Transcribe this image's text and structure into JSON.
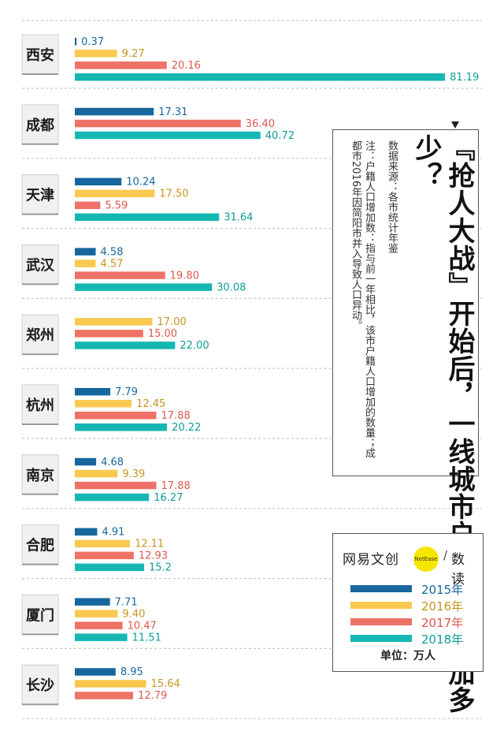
{
  "title": {
    "main": "『抢人大战』开始后，一线城市户籍人口增加多少？",
    "source": "数据来源：各市统计年鉴",
    "note": "注：户籍人口增加数：指与前一年相比，该市户籍人口增加的数量；成都市2016年因简阳市并入导致人口异动。"
  },
  "brand": {
    "name": "网易文创",
    "badge": "NetEase",
    "slash": "/",
    "sub": "数读"
  },
  "legend": {
    "items": [
      {
        "label": "2015年",
        "color": "#17679e"
      },
      {
        "label": "2016年",
        "color": "#f9c94f"
      },
      {
        "label": "2017年",
        "color": "#ee7267"
      },
      {
        "label": "2018年",
        "color": "#15b7b2"
      }
    ],
    "unit": "单位：万人"
  },
  "chart_data": {
    "type": "bar",
    "orientation": "horizontal",
    "series_names": [
      "2015年",
      "2016年",
      "2017年",
      "2018年"
    ],
    "series_colors": [
      "#17679e",
      "#f9c94f",
      "#ee7267",
      "#15b7b2"
    ],
    "label_colors": [
      "#17679e",
      "#c8951e",
      "#e0584d",
      "#0f9c97"
    ],
    "unit": "单位：万人",
    "cities": [
      {
        "name": "西安",
        "bars": [
          {
            "s": 0,
            "v": 0.37,
            "label": "0.37"
          },
          {
            "s": 1,
            "v": 9.27,
            "label": "9.27"
          },
          {
            "s": 2,
            "v": 20.16,
            "label": "20.16"
          },
          {
            "s": 3,
            "v": 81.19,
            "label": "81.19"
          }
        ]
      },
      {
        "name": "成都",
        "bars": [
          {
            "s": 0,
            "v": 17.31,
            "label": "17.31"
          },
          {
            "s": 2,
            "v": 36.4,
            "label": "36.40"
          },
          {
            "s": 3,
            "v": 40.72,
            "label": "40.72"
          }
        ]
      },
      {
        "name": "天津",
        "bars": [
          {
            "s": 0,
            "v": 10.24,
            "label": "10.24"
          },
          {
            "s": 1,
            "v": 17.5,
            "label": "17.50"
          },
          {
            "s": 2,
            "v": 5.59,
            "label": "5.59"
          },
          {
            "s": 3,
            "v": 31.64,
            "label": "31.64"
          }
        ]
      },
      {
        "name": "武汉",
        "bars": [
          {
            "s": 0,
            "v": 4.58,
            "label": "4.58"
          },
          {
            "s": 1,
            "v": 4.57,
            "label": "4.57"
          },
          {
            "s": 2,
            "v": 19.8,
            "label": "19.80"
          },
          {
            "s": 3,
            "v": 30.08,
            "label": "30.08"
          }
        ]
      },
      {
        "name": "郑州",
        "bars": [
          {
            "s": 1,
            "v": 17.0,
            "label": "17.00"
          },
          {
            "s": 2,
            "v": 15.0,
            "label": "15.00"
          },
          {
            "s": 3,
            "v": 22.0,
            "label": "22.00"
          }
        ]
      },
      {
        "name": "杭州",
        "bars": [
          {
            "s": 0,
            "v": 7.79,
            "label": "7.79"
          },
          {
            "s": 1,
            "v": 12.45,
            "label": "12.45"
          },
          {
            "s": 2,
            "v": 17.88,
            "label": "17.88"
          },
          {
            "s": 3,
            "v": 20.22,
            "label": "20.22"
          }
        ]
      },
      {
        "name": "南京",
        "bars": [
          {
            "s": 0,
            "v": 4.68,
            "label": "4.68"
          },
          {
            "s": 1,
            "v": 9.39,
            "label": "9.39"
          },
          {
            "s": 2,
            "v": 17.88,
            "label": "17.88"
          },
          {
            "s": 3,
            "v": 16.27,
            "label": "16.27"
          }
        ]
      },
      {
        "name": "合肥",
        "bars": [
          {
            "s": 0,
            "v": 4.91,
            "label": "4.91"
          },
          {
            "s": 1,
            "v": 12.11,
            "label": "12.11"
          },
          {
            "s": 2,
            "v": 12.93,
            "label": "12.93"
          },
          {
            "s": 3,
            "v": 15.2,
            "label": "15.2"
          }
        ]
      },
      {
        "name": "厦门",
        "bars": [
          {
            "s": 0,
            "v": 7.71,
            "label": "7.71"
          },
          {
            "s": 1,
            "v": 9.4,
            "label": "9.40"
          },
          {
            "s": 2,
            "v": 10.47,
            "label": "10.47"
          },
          {
            "s": 3,
            "v": 11.51,
            "label": "11.51"
          }
        ]
      },
      {
        "name": "长沙",
        "bars": [
          {
            "s": 0,
            "v": 8.95,
            "label": "8.95"
          },
          {
            "s": 1,
            "v": 15.64,
            "label": "15.64"
          },
          {
            "s": 2,
            "v": 12.79,
            "label": "12.79"
          }
        ]
      }
    ]
  }
}
